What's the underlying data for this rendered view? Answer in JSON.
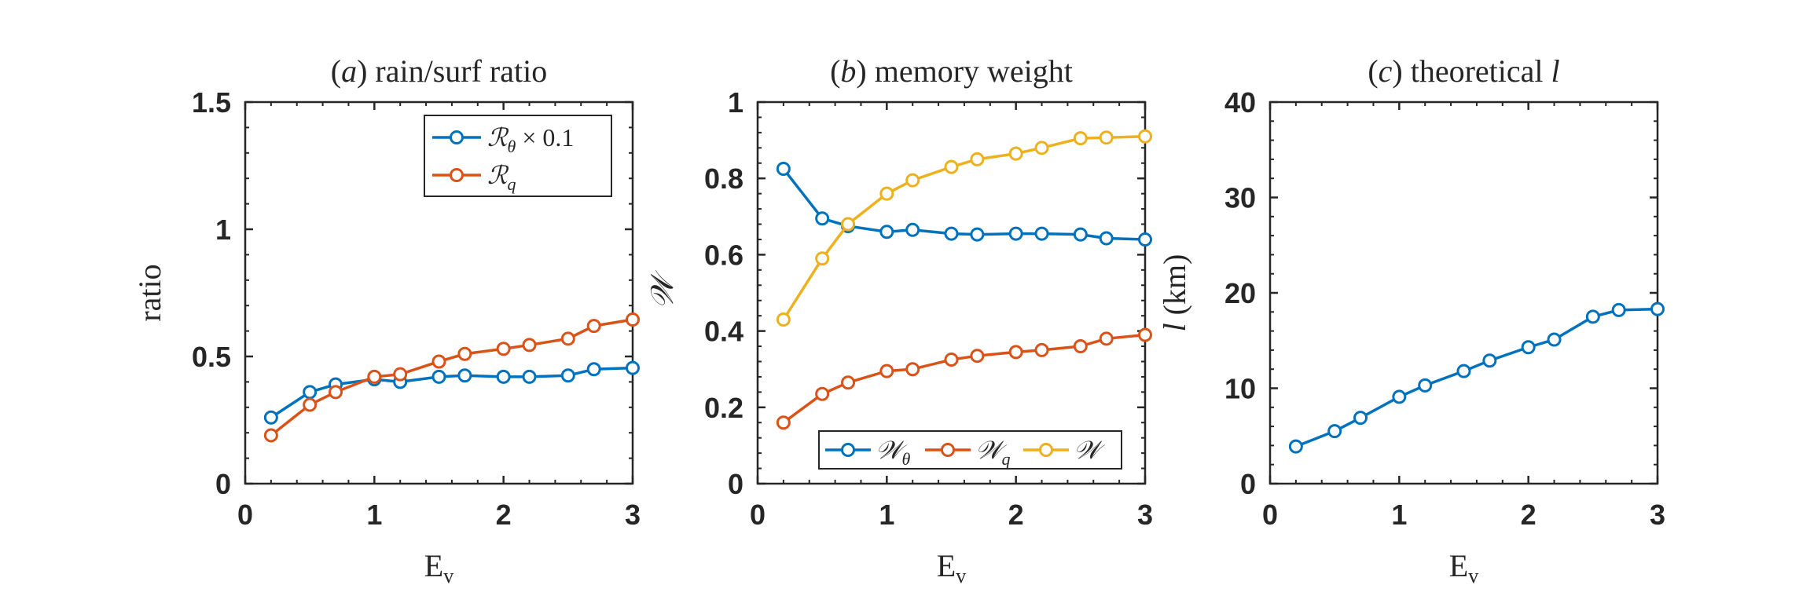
{
  "colors": {
    "blue": "#0072BD",
    "orange": "#D95319",
    "yellow": "#EDB120",
    "axis": "#262626"
  },
  "chart_data": [
    {
      "type": "line",
      "panel": "a",
      "title": {
        "label": "(a)",
        "text": "rain/surf ratio"
      },
      "xlabel": {
        "main": "E",
        "sub": "v"
      },
      "ylabel": "ratio",
      "xlim": [
        0,
        3
      ],
      "ylim": [
        0,
        1.5
      ],
      "xticks": [
        0,
        1,
        2,
        3
      ],
      "xtick_labels": [
        "0",
        "1",
        "2",
        "3"
      ],
      "yticks": [
        0,
        0.5,
        1,
        1.5
      ],
      "ytick_labels": [
        "0",
        "0.5",
        "1",
        "1.5"
      ],
      "legend_position": "top-right",
      "x": [
        0.2,
        0.5,
        0.7,
        1.0,
        1.2,
        1.5,
        1.7,
        2.0,
        2.2,
        2.5,
        2.7,
        3.0
      ],
      "series": [
        {
          "name": "R_theta x 0.1",
          "legend": {
            "main": "ℛ",
            "sub": "θ",
            "suffix": "× 0.1"
          },
          "color": "#0072BD",
          "values": [
            0.26,
            0.36,
            0.39,
            0.41,
            0.4,
            0.42,
            0.425,
            0.42,
            0.42,
            0.425,
            0.45,
            0.455
          ]
        },
        {
          "name": "R_q",
          "legend": {
            "main": "ℛ",
            "sub": "q",
            "suffix": ""
          },
          "color": "#D95319",
          "values": [
            0.19,
            0.31,
            0.36,
            0.42,
            0.43,
            0.48,
            0.51,
            0.53,
            0.545,
            0.57,
            0.62,
            0.645
          ]
        }
      ]
    },
    {
      "type": "line",
      "panel": "b",
      "title": {
        "label": "(b)",
        "text": "memory weight"
      },
      "xlabel": {
        "main": "E",
        "sub": "v"
      },
      "ylabel": "𝒲",
      "xlim": [
        0,
        3
      ],
      "ylim": [
        0,
        1
      ],
      "xticks": [
        0,
        1,
        2,
        3
      ],
      "xtick_labels": [
        "0",
        "1",
        "2",
        "3"
      ],
      "yticks": [
        0,
        0.2,
        0.4,
        0.6,
        0.8,
        1
      ],
      "ytick_labels": [
        "0",
        "0.2",
        "0.4",
        "0.6",
        "0.8",
        "1"
      ],
      "legend_position": "bottom-right",
      "x": [
        0.2,
        0.5,
        0.7,
        1.0,
        1.2,
        1.5,
        1.7,
        2.0,
        2.2,
        2.5,
        2.7,
        3.0
      ],
      "series": [
        {
          "name": "W_theta",
          "legend": {
            "main": "𝒲",
            "sub": "θ",
            "suffix": ""
          },
          "color": "#0072BD",
          "values": [
            0.825,
            0.695,
            0.675,
            0.66,
            0.665,
            0.655,
            0.653,
            0.655,
            0.655,
            0.653,
            0.643,
            0.64
          ]
        },
        {
          "name": "W_q",
          "legend": {
            "main": "𝒲",
            "sub": "q",
            "suffix": ""
          },
          "color": "#D95319",
          "values": [
            0.16,
            0.235,
            0.265,
            0.295,
            0.3,
            0.325,
            0.335,
            0.345,
            0.35,
            0.36,
            0.38,
            0.39
          ]
        },
        {
          "name": "W",
          "legend": {
            "main": "𝒲",
            "sub": "",
            "suffix": ""
          },
          "color": "#EDB120",
          "values": [
            0.43,
            0.59,
            0.68,
            0.76,
            0.795,
            0.83,
            0.85,
            0.865,
            0.88,
            0.905,
            0.907,
            0.91
          ]
        }
      ]
    },
    {
      "type": "line",
      "panel": "c",
      "title": {
        "label": "(c)",
        "text": "theoretical l"
      },
      "xlabel": {
        "main": "E",
        "sub": "v"
      },
      "ylabel": "l (km)",
      "xlim": [
        0,
        3
      ],
      "ylim": [
        0,
        40
      ],
      "xticks": [
        0,
        1,
        2,
        3
      ],
      "xtick_labels": [
        "0",
        "1",
        "2",
        "3"
      ],
      "yticks": [
        0,
        10,
        20,
        30,
        40
      ],
      "ytick_labels": [
        "0",
        "10",
        "20",
        "30",
        "40"
      ],
      "legend_position": "none",
      "x": [
        0.2,
        0.5,
        0.7,
        1.0,
        1.2,
        1.5,
        1.7,
        2.0,
        2.2,
        2.5,
        2.7,
        3.0
      ],
      "series": [
        {
          "name": "l",
          "legend": null,
          "color": "#0072BD",
          "values": [
            3.9,
            5.5,
            6.9,
            9.1,
            10.3,
            11.8,
            12.9,
            14.3,
            15.1,
            17.5,
            18.2,
            18.3
          ]
        }
      ]
    }
  ]
}
